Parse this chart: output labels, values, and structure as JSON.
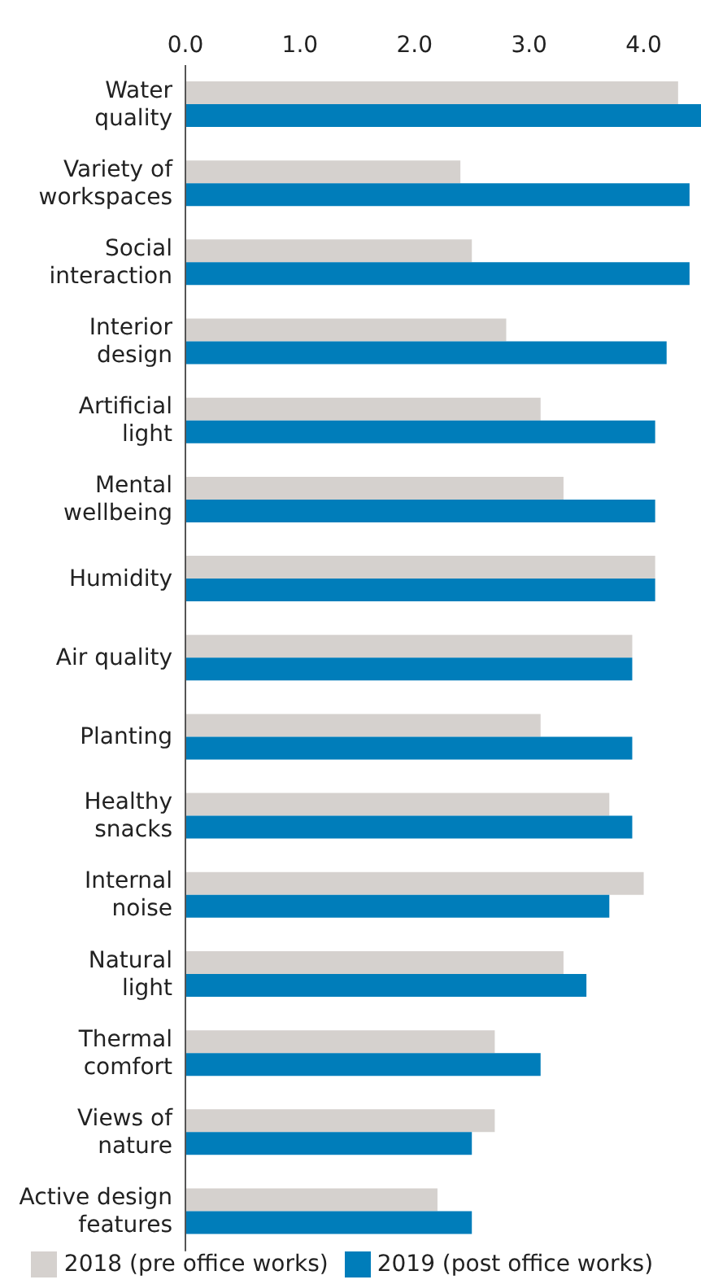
{
  "chart_data": {
    "type": "bar",
    "orientation": "horizontal",
    "categories": [
      "Water quality",
      "Variety of workspaces",
      "Social interaction",
      "Interior design",
      "Artificial light",
      "Mental wellbeing",
      "Humidity",
      "Air quality",
      "Planting",
      "Healthy snacks",
      "Internal noise",
      "Natural light",
      "Thermal comfort",
      "Views of nature",
      "Active design features"
    ],
    "series": [
      {
        "name": "2018 (pre office works)",
        "color": "#d5d1ce",
        "values": [
          4.3,
          2.4,
          2.5,
          2.8,
          3.1,
          3.3,
          4.1,
          3.9,
          3.1,
          3.7,
          4.0,
          3.3,
          2.7,
          2.7,
          2.2
        ]
      },
      {
        "name": "2019 (post office works)",
        "color": "#007dba",
        "values": [
          4.5,
          4.4,
          4.4,
          4.2,
          4.1,
          4.1,
          4.1,
          3.9,
          3.9,
          3.9,
          3.7,
          3.5,
          3.1,
          2.5,
          2.5
        ]
      }
    ],
    "xlim": [
      0,
      4.5
    ],
    "xticks": [
      {
        "value": 0,
        "label": "0.0"
      },
      {
        "value": 1,
        "label": "1.0"
      },
      {
        "value": 2,
        "label": "2.0"
      },
      {
        "value": 3,
        "label": "3.0"
      },
      {
        "value": 4,
        "label": "4.0"
      }
    ],
    "grid": false,
    "legend": "bottom"
  }
}
